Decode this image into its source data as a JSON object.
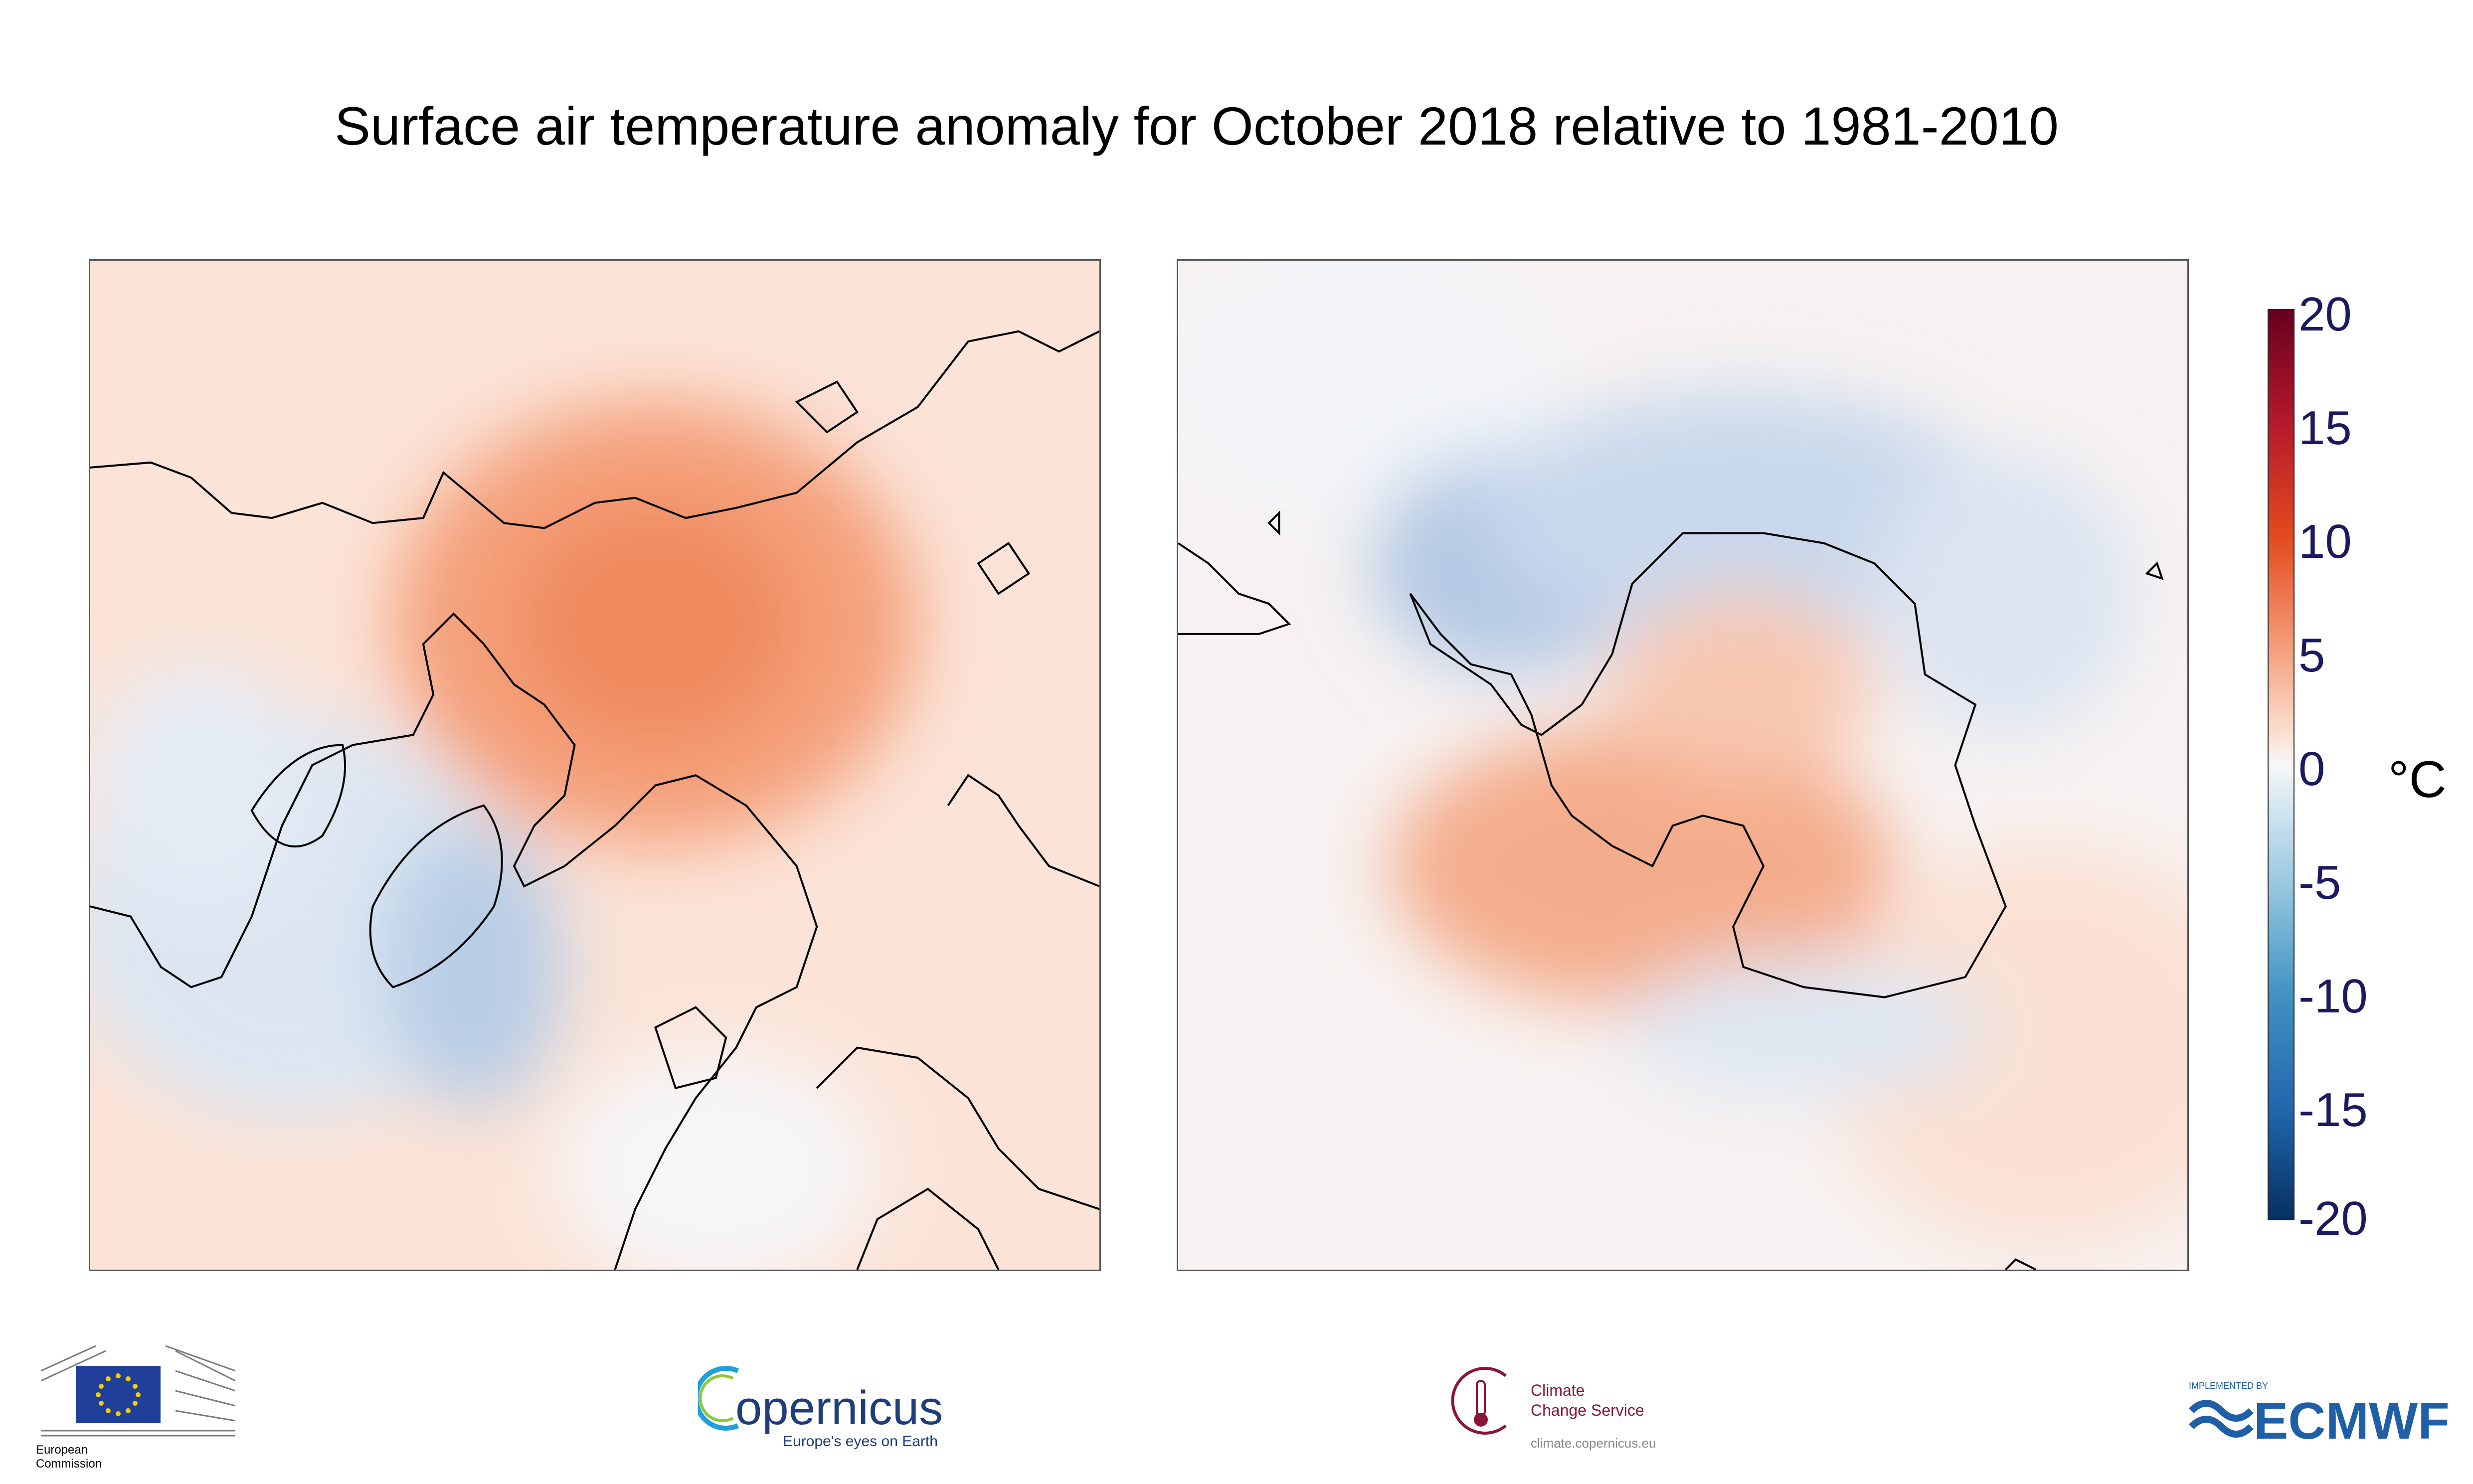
{
  "title": "Surface air temperature anomaly for October 2018 relative to 1981-2010",
  "maps": {
    "north": {
      "label": "Northern hemisphere polar projection"
    },
    "south": {
      "label": "Southern hemisphere polar projection"
    }
  },
  "colorbar": {
    "unit": "°C",
    "ticks": [
      "20",
      "15",
      "10",
      "5",
      "0",
      "-5",
      "-10",
      "-15",
      "-20"
    ],
    "range": [
      -20,
      20
    ],
    "colors": {
      "max": "#67001f",
      "warm": "#e34a1f",
      "zero": "#f7f7f7",
      "cool": "#4393c3",
      "min": "#053061"
    }
  },
  "chart_data": {
    "type": "heatmap",
    "title": "Surface air temperature anomaly for October 2018 relative to 1981-2010",
    "zlabel": "°C",
    "zlim": [
      -20,
      20
    ],
    "colorbar_ticks": [
      20,
      15,
      10,
      5,
      0,
      -5,
      -10,
      -15,
      -20
    ],
    "panels": [
      "Arctic (north polar stereographic)",
      "Antarctic (south polar stereographic)"
    ]
  },
  "logos": {
    "eu": {
      "line1": "European",
      "line2": "Commission"
    },
    "copernicus": {
      "word": "opernicus",
      "tagline": "Europe's eyes on Earth"
    },
    "c3s": {
      "line1": "Climate",
      "line2": "Change Service",
      "url": "climate.copernicus.eu"
    },
    "ecmwf": {
      "small": "IMPLEMENTED BY",
      "big": "ECMWF"
    }
  }
}
